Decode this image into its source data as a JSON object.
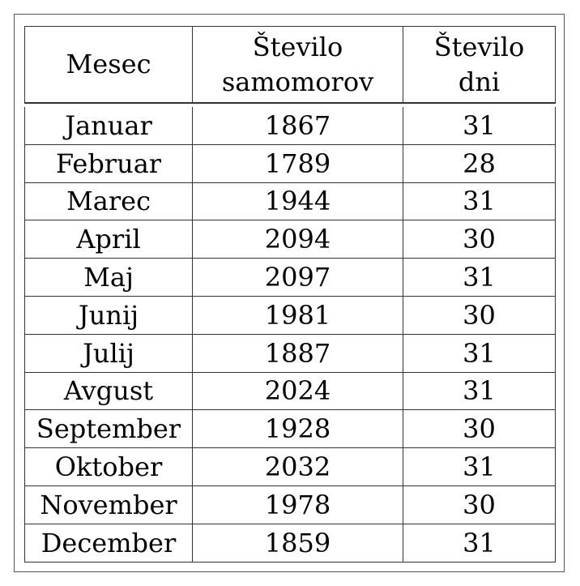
{
  "table": {
    "headers": {
      "month": "Mesec",
      "suicides_line1": "Število",
      "suicides_line2": "samomorov",
      "days_line1": "Število",
      "days_line2": "dni"
    },
    "rows": [
      {
        "month": "Januar",
        "suicides": "1867",
        "days": "31"
      },
      {
        "month": "Februar",
        "suicides": "1789",
        "days": "28"
      },
      {
        "month": "Marec",
        "suicides": "1944",
        "days": "31"
      },
      {
        "month": "April",
        "suicides": "2094",
        "days": "30"
      },
      {
        "month": "Maj",
        "suicides": "2097",
        "days": "31"
      },
      {
        "month": "Junij",
        "suicides": "1981",
        "days": "30"
      },
      {
        "month": "Julij",
        "suicides": "1887",
        "days": "31"
      },
      {
        "month": "Avgust",
        "suicides": "2024",
        "days": "31"
      },
      {
        "month": "September",
        "suicides": "1928",
        "days": "30"
      },
      {
        "month": "Oktober",
        "suicides": "2032",
        "days": "31"
      },
      {
        "month": "November",
        "suicides": "1978",
        "days": "30"
      },
      {
        "month": "December",
        "suicides": "1859",
        "days": "31"
      }
    ]
  }
}
